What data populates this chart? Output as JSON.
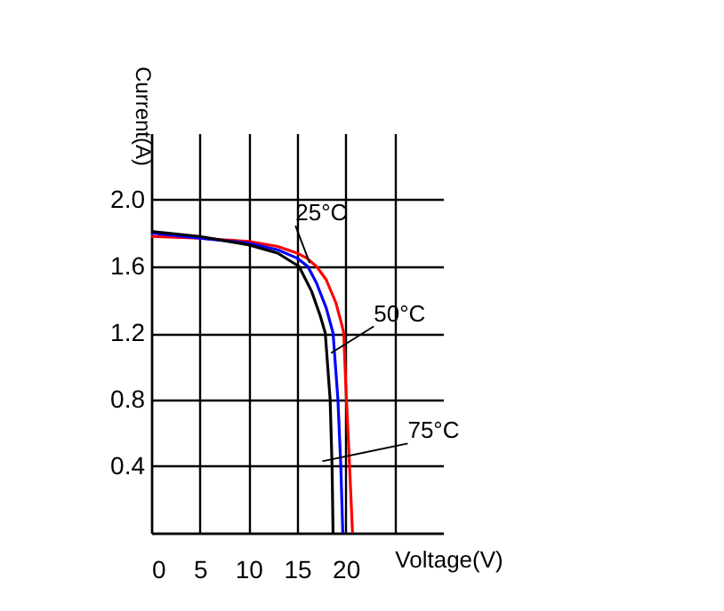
{
  "chart_data": {
    "type": "line",
    "xlabel": "Voltage(V)",
    "ylabel": "Current(A)",
    "xlim": [
      0,
      30
    ],
    "ylim": [
      0,
      2.4
    ],
    "xticks": [
      0,
      5,
      10,
      15,
      20,
      {
        "value": 25,
        "label": null
      }
    ],
    "yticks": [
      {
        "value": 0,
        "label": null
      },
      0.4,
      0.8,
      1.2,
      1.6,
      {
        "value": 2.0,
        "label": "2.0"
      }
    ],
    "grid": true,
    "marker": "none",
    "line_style": "solid",
    "series": [
      {
        "color": "#ff0000",
        "x": [
          0,
          5,
          10,
          13,
          15,
          16,
          17,
          18,
          19,
          19.6,
          19.8,
          20,
          20.4,
          20.7
        ],
        "values": [
          1.78,
          1.77,
          1.75,
          1.72,
          1.68,
          1.65,
          1.6,
          1.52,
          1.38,
          1.25,
          1.2,
          0.9,
          0.4,
          0
        ]
      },
      {
        "color": "#0000ff",
        "x": [
          0,
          5,
          10,
          13,
          15,
          16.1,
          17,
          18,
          18.7,
          19.2,
          19.5,
          19.7
        ],
        "values": [
          1.8,
          1.77,
          1.74,
          1.7,
          1.65,
          1.6,
          1.5,
          1.35,
          1.2,
          0.8,
          0.4,
          0
        ]
      },
      {
        "color": "#000000",
        "x": [
          0,
          5,
          10,
          13,
          15.2,
          16.5,
          17.4,
          17.9,
          18.4,
          18.6,
          18.7
        ],
        "values": [
          1.81,
          1.78,
          1.73,
          1.68,
          1.6,
          1.45,
          1.3,
          1.2,
          0.8,
          0.4,
          0
        ]
      }
    ],
    "annotations": [
      {
        "text": "25°C",
        "x": 16.3,
        "y": 1.62
      },
      {
        "text": "50°C",
        "x": 18.5,
        "y": 1.08
      },
      {
        "text": "75°C",
        "x": 17.6,
        "y": 0.43
      }
    ]
  }
}
